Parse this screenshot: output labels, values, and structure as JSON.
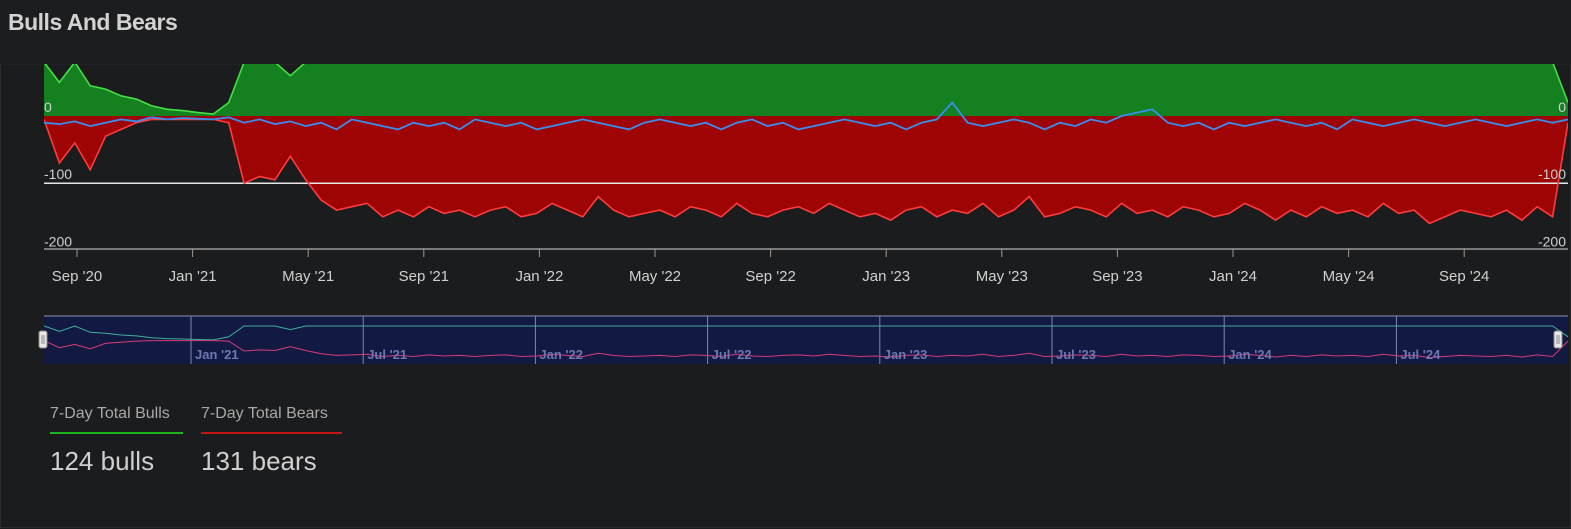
{
  "title": "Bulls And Bears",
  "colors": {
    "bulls_fill": "#158020",
    "bulls_line": "#44e044",
    "bears_fill": "#9e0404",
    "bears_line": "#ff3b3b",
    "net_line": "#3a8ef0",
    "navigator_bg": "#121a44",
    "navigator_bulls": "#3fae9a",
    "navigator_bears": "#d83a7a"
  },
  "chart_data": {
    "type": "area",
    "x_ticks": [
      "Sep '20",
      "Jan '21",
      "May '21",
      "Sep '21",
      "Jan '22",
      "May '22",
      "Sep '22",
      "Jan '23",
      "May '23",
      "Sep '23",
      "Jan '24",
      "May '24",
      "Sep '24"
    ],
    "y_tick_labels": [
      "0",
      "-100",
      "-200"
    ],
    "ylim": [
      -200,
      80
    ],
    "reference_line": -100,
    "series": [
      {
        "name": "7-Day Total Bulls",
        "shape_values": [
          80,
          50,
          80,
          45,
          40,
          30,
          25,
          15,
          10,
          8,
          5,
          3,
          20,
          80,
          80,
          80,
          60,
          80,
          80,
          80,
          80,
          80,
          80,
          80,
          80,
          80,
          80,
          80,
          80,
          80,
          80,
          80,
          80,
          80,
          80,
          80,
          80,
          80,
          80,
          80,
          80,
          80,
          80,
          80,
          80,
          80,
          80,
          80,
          80,
          80,
          80,
          80,
          80,
          80,
          80,
          80,
          80,
          80,
          80,
          80,
          80,
          80,
          80,
          80,
          80,
          80,
          80,
          80,
          80,
          80,
          80,
          80,
          80,
          80,
          80,
          80,
          80,
          80,
          80,
          80,
          80,
          80,
          80,
          80,
          80,
          80,
          80,
          80,
          80,
          80,
          80,
          80,
          80,
          80,
          80,
          80,
          80,
          80,
          80,
          20
        ]
      },
      {
        "name": "7-Day Total Bears",
        "shape_values": [
          -5,
          -70,
          -40,
          -80,
          -30,
          -20,
          -10,
          -5,
          -5,
          -5,
          -5,
          -5,
          -10,
          -100,
          -90,
          -95,
          -60,
          -95,
          -125,
          -140,
          -135,
          -130,
          -150,
          -140,
          -150,
          -135,
          -145,
          -140,
          -150,
          -140,
          -135,
          -150,
          -145,
          -130,
          -140,
          -150,
          -120,
          -140,
          -150,
          -145,
          -140,
          -150,
          -135,
          -140,
          -150,
          -130,
          -145,
          -150,
          -140,
          -135,
          -145,
          -130,
          -140,
          -150,
          -145,
          -155,
          -140,
          -135,
          -150,
          -140,
          -145,
          -130,
          -150,
          -140,
          -120,
          -150,
          -145,
          -135,
          -140,
          -150,
          -130,
          -145,
          -140,
          -150,
          -135,
          -140,
          -150,
          -145,
          -130,
          -140,
          -155,
          -140,
          -150,
          -135,
          -145,
          -140,
          -150,
          -130,
          -145,
          -140,
          -160,
          -150,
          -140,
          -145,
          -150,
          -140,
          -155,
          -135,
          -150,
          -10
        ]
      },
      {
        "name": "Net",
        "shape_values": [
          -10,
          -12,
          -8,
          -15,
          -10,
          -5,
          -8,
          -2,
          -5,
          -3,
          -4,
          -5,
          -2,
          -10,
          -5,
          -12,
          -8,
          -15,
          -10,
          -20,
          -5,
          -10,
          -15,
          -20,
          -10,
          -15,
          -10,
          -20,
          -5,
          -10,
          -15,
          -10,
          -20,
          -15,
          -10,
          -5,
          -10,
          -15,
          -20,
          -10,
          -5,
          -10,
          -15,
          -10,
          -20,
          -10,
          -5,
          -15,
          -10,
          -20,
          -15,
          -10,
          -5,
          -10,
          -15,
          -10,
          -20,
          -10,
          -5,
          20,
          -10,
          -15,
          -10,
          -5,
          -10,
          -20,
          -10,
          -15,
          -5,
          -10,
          0,
          5,
          10,
          -10,
          -15,
          -10,
          -20,
          -10,
          -15,
          -10,
          -5,
          -10,
          -15,
          -10,
          -20,
          -5,
          -10,
          -15,
          -10,
          -5,
          -10,
          -15,
          -10,
          -5,
          -10,
          -15,
          -10,
          -5,
          -10,
          -5
        ]
      }
    ]
  },
  "navigator": {
    "labels": [
      "Jan '21",
      "Jul '21",
      "Jan '22",
      "Jul '22",
      "Jan '23",
      "Jul '23",
      "Jan '24",
      "Jul '24"
    ]
  },
  "legend": {
    "bulls_label": "7-Day Total Bulls",
    "bears_label": "7-Day Total Bears"
  },
  "stats": {
    "bulls_text": "124 bulls",
    "bears_text": "131 bears"
  }
}
